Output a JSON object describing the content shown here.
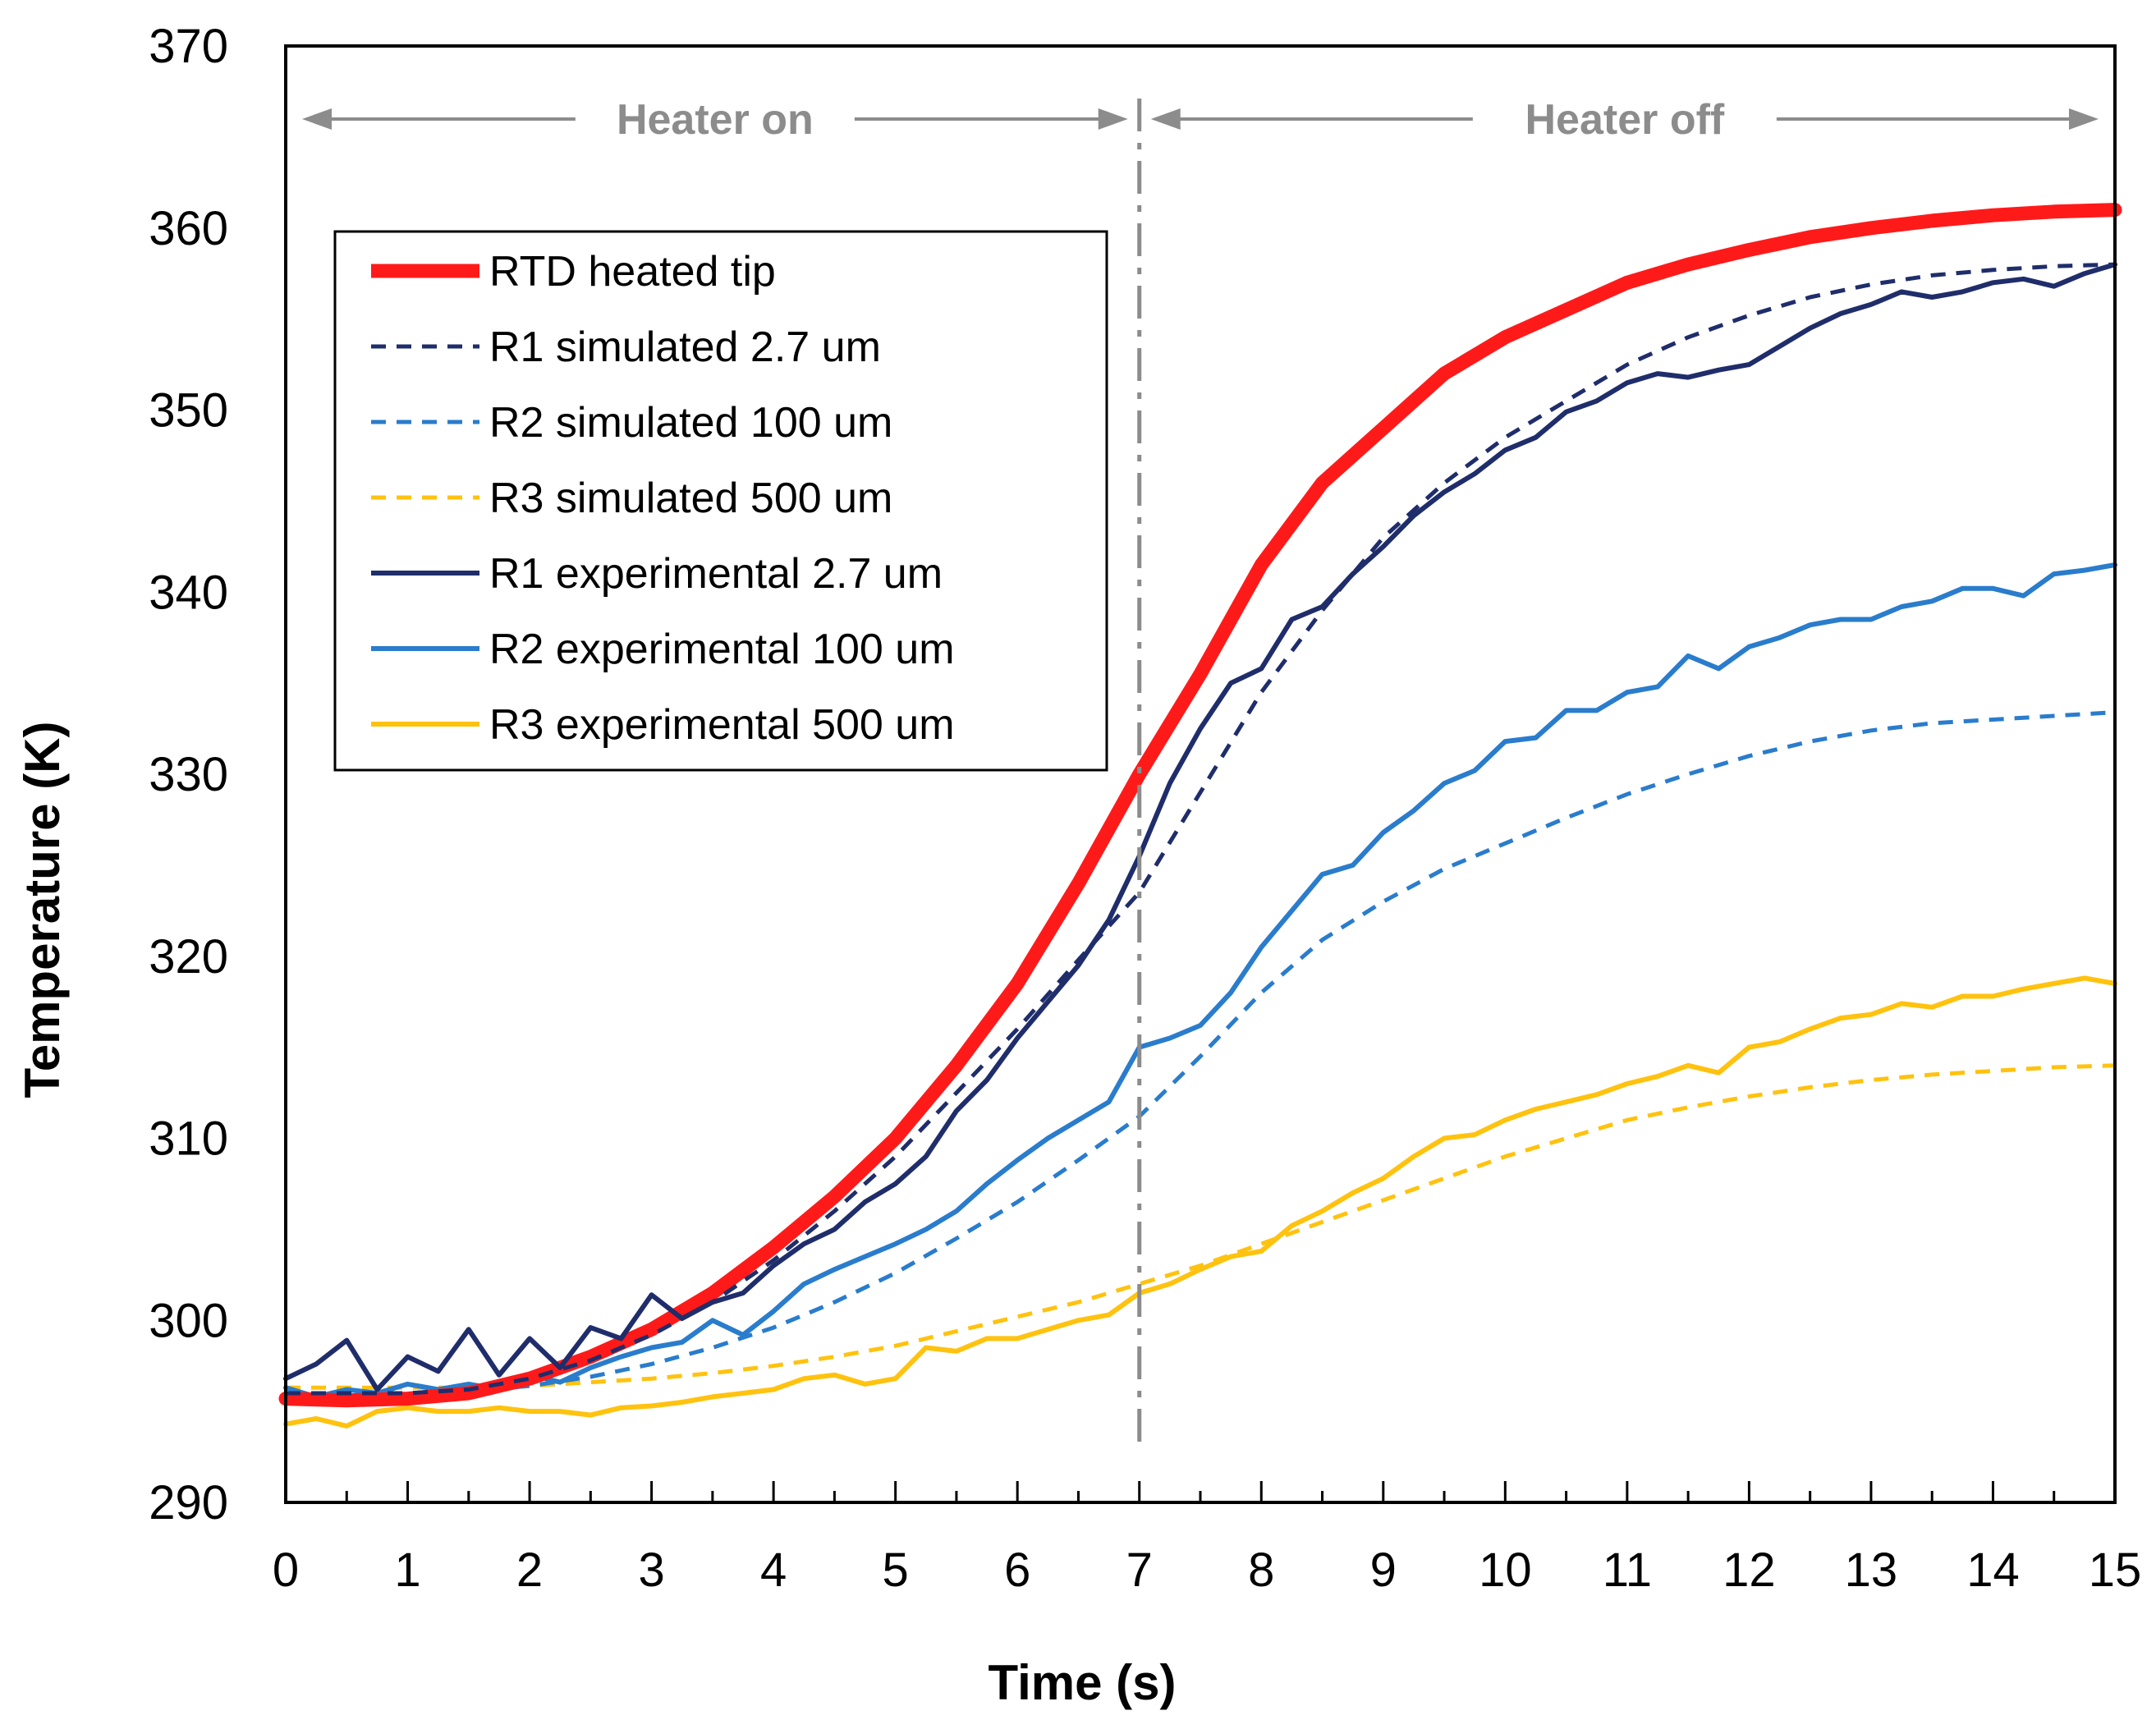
{
  "chart_data": {
    "type": "line",
    "xlabel": "Time (s)",
    "ylabel": "Temperature (K)",
    "xlim": [
      0,
      15
    ],
    "ylim": [
      290,
      370
    ],
    "xticks": [
      "0",
      "1",
      "2",
      "3",
      "4",
      "5",
      "6",
      "7",
      "8",
      "9",
      "10",
      "11",
      "12",
      "13",
      "14",
      "15"
    ],
    "yticks": [
      "290",
      "300",
      "310",
      "320",
      "330",
      "340",
      "350",
      "360",
      "370"
    ],
    "grid": false,
    "legend_position": "upper-left",
    "annotations": {
      "heater_on": "Heater on",
      "heater_off": "Heater off",
      "divider_x": 7
    },
    "colors": {
      "rtd": "#ff1a1a",
      "r1": "#1f2d6b",
      "r2": "#2a7ccc",
      "r3": "#ffc20e",
      "annotation": "#8c8c8c"
    },
    "series": [
      {
        "name": "RTD heated tip",
        "style": "thick",
        "color": "#ff1a1a",
        "x": [
          0,
          0.5,
          1,
          1.5,
          2,
          2.5,
          3,
          3.5,
          4,
          4.5,
          5,
          5.5,
          6,
          6.5,
          7,
          7.5,
          8,
          8.5,
          9,
          9.5,
          10,
          10.5,
          11,
          11.5,
          12,
          12.5,
          13,
          13.5,
          14,
          14.5,
          15
        ],
        "y": [
          295.7,
          295.6,
          295.7,
          296.0,
          296.8,
          298.0,
          299.5,
          301.5,
          304.0,
          306.8,
          310.0,
          314.0,
          318.5,
          324.0,
          330.0,
          335.5,
          341.5,
          346.0,
          349.0,
          352.0,
          354.0,
          355.5,
          357.0,
          358.0,
          358.8,
          359.5,
          360.0,
          360.4,
          360.7,
          360.9,
          361.0
        ]
      },
      {
        "name": "R1 simulated 2.7 um",
        "style": "dashed",
        "color": "#1f2d6b",
        "x": [
          0,
          0.5,
          1,
          1.5,
          2,
          2.5,
          3,
          3.5,
          4,
          4.5,
          5,
          5.5,
          6,
          6.5,
          7,
          7.5,
          8,
          8.5,
          9,
          9.5,
          10,
          10.5,
          11,
          11.5,
          12,
          12.5,
          13,
          13.5,
          14,
          14.5,
          15
        ],
        "y": [
          296.0,
          296.0,
          296.0,
          296.2,
          296.8,
          297.8,
          299.2,
          301.0,
          303.3,
          306.0,
          309.0,
          312.5,
          316.0,
          319.8,
          323.5,
          329.0,
          334.5,
          339.0,
          343.0,
          346.0,
          348.5,
          350.5,
          352.5,
          354.0,
          355.2,
          356.2,
          356.9,
          357.4,
          357.7,
          357.9,
          358.0
        ]
      },
      {
        "name": "R2 simulated 100 um",
        "style": "dashed",
        "color": "#2a7ccc",
        "x": [
          0,
          0.5,
          1,
          1.5,
          2,
          2.5,
          3,
          3.5,
          4,
          4.5,
          5,
          5.5,
          6,
          6.5,
          7,
          7.5,
          8,
          8.5,
          9,
          9.5,
          10,
          10.5,
          11,
          11.5,
          12,
          12.5,
          13,
          13.5,
          14,
          14.5,
          15
        ],
        "y": [
          296.0,
          296.0,
          296.0,
          296.1,
          296.4,
          296.9,
          297.6,
          298.5,
          299.6,
          301.0,
          302.6,
          304.5,
          306.5,
          308.8,
          311.2,
          314.5,
          318.0,
          320.9,
          323.0,
          324.8,
          326.2,
          327.6,
          328.9,
          330.0,
          331.0,
          331.8,
          332.4,
          332.8,
          333.0,
          333.2,
          333.4
        ]
      },
      {
        "name": "R3 simulated 500 um",
        "style": "dashed",
        "color": "#ffc20e",
        "x": [
          0,
          0.5,
          1,
          1.5,
          2,
          2.5,
          3,
          3.5,
          4,
          4.5,
          5,
          5.5,
          6,
          6.5,
          7,
          7.5,
          8,
          8.5,
          9,
          9.5,
          10,
          10.5,
          11,
          11.5,
          12,
          12.5,
          13,
          13.5,
          14,
          14.5,
          15
        ],
        "y": [
          296.3,
          296.3,
          296.3,
          296.3,
          296.4,
          296.6,
          296.8,
          297.1,
          297.5,
          298.0,
          298.6,
          299.4,
          300.2,
          301.0,
          302.0,
          303.0,
          304.2,
          305.4,
          306.6,
          307.8,
          309.0,
          310.0,
          311.0,
          311.7,
          312.3,
          312.8,
          313.2,
          313.5,
          313.7,
          313.9,
          314.0
        ]
      },
      {
        "name": "R1 experimental 2.7 um",
        "style": "solid",
        "color": "#1f2d6b",
        "x": [
          0,
          0.25,
          0.5,
          0.75,
          1,
          1.25,
          1.5,
          1.75,
          2,
          2.25,
          2.5,
          2.75,
          3,
          3.25,
          3.5,
          3.75,
          4,
          4.25,
          4.5,
          4.75,
          5,
          5.25,
          5.5,
          5.75,
          6,
          6.25,
          6.5,
          6.75,
          7,
          7.25,
          7.5,
          7.75,
          8,
          8.25,
          8.5,
          8.75,
          9,
          9.25,
          9.5,
          9.75,
          10,
          10.25,
          10.5,
          10.75,
          11,
          11.25,
          11.5,
          11.75,
          12,
          12.25,
          12.5,
          12.75,
          13,
          13.25,
          13.5,
          13.75,
          14,
          14.25,
          14.5,
          14.75,
          15
        ],
        "y": [
          296.8,
          297.6,
          298.9,
          296.2,
          298.0,
          297.2,
          299.5,
          297.0,
          299.0,
          297.4,
          299.6,
          299.0,
          301.4,
          300.1,
          301.0,
          301.5,
          303.0,
          304.2,
          305.0,
          306.5,
          307.5,
          309.0,
          311.5,
          313.2,
          315.5,
          317.5,
          319.5,
          322.0,
          325.5,
          329.5,
          332.5,
          335.0,
          335.8,
          338.5,
          339.2,
          341.0,
          342.5,
          344.2,
          345.5,
          346.5,
          347.8,
          348.5,
          349.9,
          350.5,
          351.5,
          352.0,
          351.8,
          352.2,
          352.5,
          353.5,
          354.5,
          355.3,
          355.8,
          356.5,
          356.2,
          356.5,
          357.0,
          357.2,
          356.8,
          357.5,
          358.0
        ]
      },
      {
        "name": "R2 experimental 100 um",
        "style": "solid",
        "color": "#2a7ccc",
        "x": [
          0,
          0.25,
          0.5,
          0.75,
          1,
          1.25,
          1.5,
          1.75,
          2,
          2.25,
          2.5,
          2.75,
          3,
          3.25,
          3.5,
          3.75,
          4,
          4.25,
          4.5,
          4.75,
          5,
          5.25,
          5.5,
          5.75,
          6,
          6.25,
          6.5,
          6.75,
          7,
          7.25,
          7.5,
          7.75,
          8,
          8.25,
          8.5,
          8.75,
          9,
          9.25,
          9.5,
          9.75,
          10,
          10.25,
          10.5,
          10.75,
          11,
          11.25,
          11.5,
          11.75,
          12,
          12.25,
          12.5,
          12.75,
          13,
          13.25,
          13.5,
          13.75,
          14,
          14.25,
          14.5,
          14.75,
          15
        ],
        "y": [
          296.3,
          295.8,
          296.2,
          296.0,
          296.5,
          296.2,
          296.5,
          296.2,
          297.0,
          296.6,
          297.4,
          298.0,
          298.5,
          298.8,
          300.0,
          299.2,
          300.5,
          302.0,
          302.8,
          303.5,
          304.2,
          305.0,
          306.0,
          307.5,
          308.8,
          310.0,
          311.0,
          312.0,
          315.0,
          315.5,
          316.2,
          318.0,
          320.5,
          322.5,
          324.5,
          325.0,
          326.8,
          328.0,
          329.5,
          330.2,
          331.8,
          332.0,
          333.5,
          333.5,
          334.5,
          334.8,
          336.5,
          335.8,
          337.0,
          337.5,
          338.2,
          338.5,
          338.5,
          339.2,
          339.5,
          340.2,
          340.2,
          339.8,
          341.0,
          341.2,
          341.5
        ]
      },
      {
        "name": "R3 experimental 500 um",
        "style": "solid",
        "color": "#ffc20e",
        "x": [
          0,
          0.25,
          0.5,
          0.75,
          1,
          1.25,
          1.5,
          1.75,
          2,
          2.25,
          2.5,
          2.75,
          3,
          3.25,
          3.5,
          3.75,
          4,
          4.25,
          4.5,
          4.75,
          5,
          5.25,
          5.5,
          5.75,
          6,
          6.25,
          6.5,
          6.75,
          7,
          7.25,
          7.5,
          7.75,
          8,
          8.25,
          8.5,
          8.75,
          9,
          9.25,
          9.5,
          9.75,
          10,
          10.25,
          10.5,
          10.75,
          11,
          11.25,
          11.5,
          11.75,
          12,
          12.25,
          12.5,
          12.75,
          13,
          13.25,
          13.5,
          13.75,
          14,
          14.25,
          14.5,
          14.75,
          15
        ],
        "y": [
          294.3,
          294.6,
          294.2,
          295.0,
          295.2,
          295.0,
          295.0,
          295.2,
          295.0,
          295.0,
          294.8,
          295.2,
          295.3,
          295.5,
          295.8,
          296.0,
          296.2,
          296.8,
          297.0,
          296.5,
          296.8,
          298.5,
          298.3,
          299.0,
          299.0,
          299.5,
          300.0,
          300.3,
          301.5,
          302.0,
          302.8,
          303.5,
          303.8,
          305.2,
          306.0,
          307.0,
          307.8,
          309.0,
          310.0,
          310.2,
          311.0,
          311.6,
          312.0,
          312.4,
          313.0,
          313.4,
          314.0,
          313.6,
          315.0,
          315.3,
          316.0,
          316.6,
          316.8,
          317.4,
          317.2,
          317.8,
          317.8,
          318.2,
          318.5,
          318.8,
          318.5
        ]
      }
    ]
  }
}
